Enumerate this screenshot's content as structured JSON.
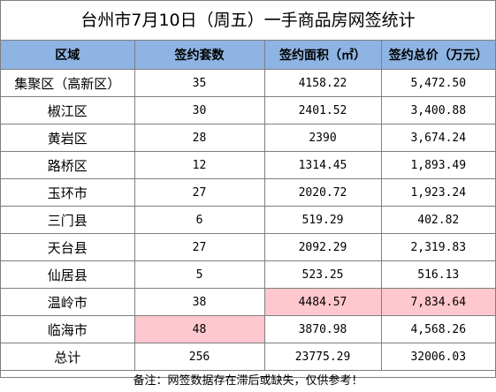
{
  "title": "台州市7月10日（周五）一手商品房网签统计",
  "headers": {
    "region": "区域",
    "units": "签约套数",
    "area": "签约面积（㎡）",
    "total": "签约总价（万元）"
  },
  "rows": [
    {
      "region": "集聚区（高新区）",
      "units": "35",
      "area": "4158.22",
      "total": "5,472.50"
    },
    {
      "region": "椒江区",
      "units": "30",
      "area": "2401.52",
      "total": "3,400.88"
    },
    {
      "region": "黄岩区",
      "units": "28",
      "area": "2390",
      "total": "3,674.24"
    },
    {
      "region": "路桥区",
      "units": "12",
      "area": "1314.45",
      "total": "1,893.49"
    },
    {
      "region": "玉环市",
      "units": "27",
      "area": "2020.72",
      "total": "1,923.24"
    },
    {
      "region": "三门县",
      "units": "6",
      "area": "519.29",
      "total": "402.82"
    },
    {
      "region": "天台县",
      "units": "27",
      "area": "2092.29",
      "total": "2,319.83"
    },
    {
      "region": "仙居县",
      "units": "5",
      "area": "523.25",
      "total": "516.13"
    },
    {
      "region": "温岭市",
      "units": "38",
      "area": "4484.57",
      "total": "7,834.64"
    },
    {
      "region": "临海市",
      "units": "48",
      "area": "3870.98",
      "total": "4,568.26"
    }
  ],
  "total_row": {
    "region": "总计",
    "units": "256",
    "area": "23775.29",
    "total": "32006.03"
  },
  "highlights": {
    "color": "#ffc7ce",
    "cells": [
      "8.area",
      "8.total",
      "9.units"
    ]
  },
  "header_color": "#8db4e2",
  "note": "备注：网签数据存在滞后或缺失，仅供参考！"
}
